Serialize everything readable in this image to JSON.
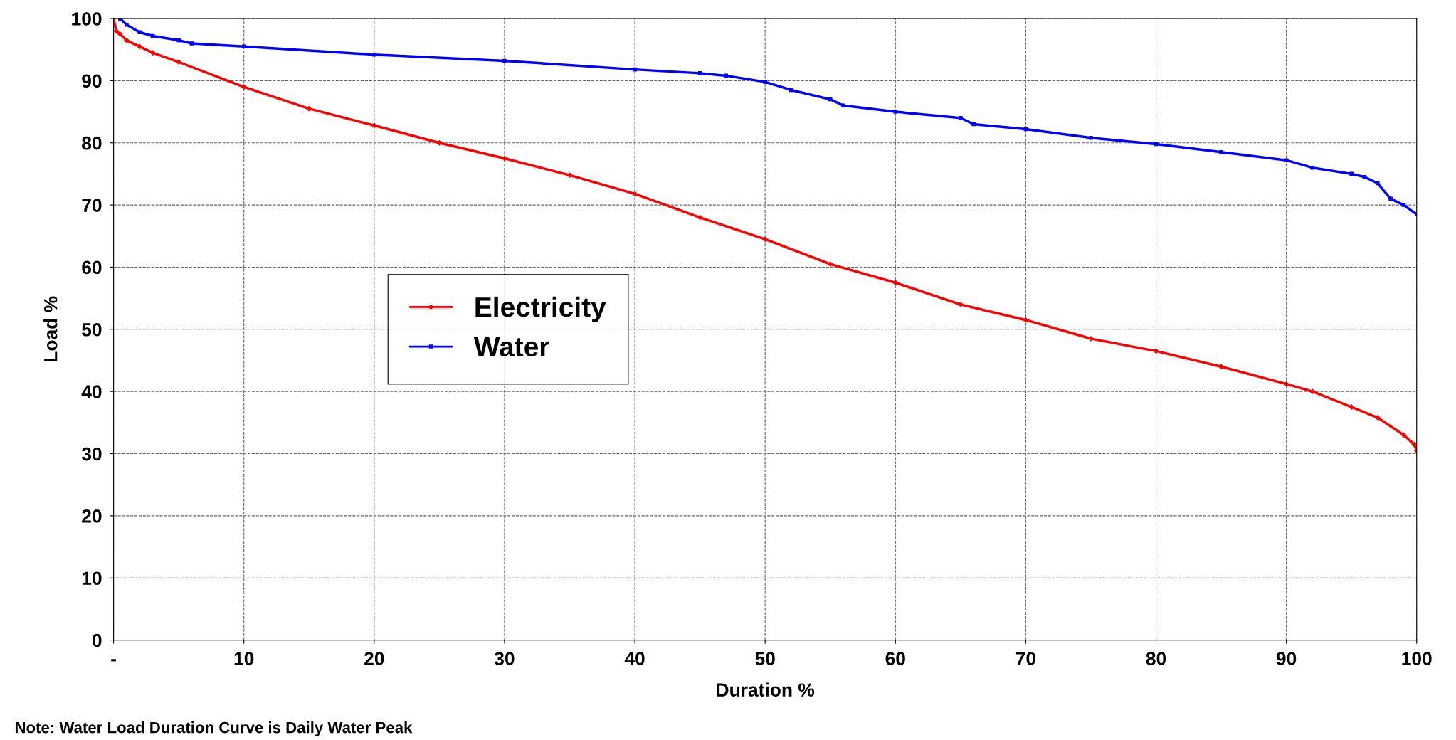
{
  "chart_data": {
    "type": "line",
    "xlabel": "Duration %",
    "ylabel": "Load %",
    "xlim": [
      0,
      100
    ],
    "xticks": [
      {
        "value": 0,
        "label": "-"
      },
      10,
      20,
      30,
      40,
      50,
      60,
      70,
      80,
      90,
      100
    ],
    "ylim": [
      0,
      100
    ],
    "yticks": [
      0,
      10,
      20,
      30,
      40,
      50,
      60,
      70,
      80,
      90,
      100
    ],
    "grid": true,
    "legend": "center left",
    "line_style": "solid",
    "annotations": [
      "Note: Water Load Duration Curve is Daily Water Peak"
    ],
    "series": [
      {
        "name": "Electricity",
        "color": "#ff0000",
        "marker": "diamond",
        "x": [
          0,
          0.2,
          0.5,
          1,
          2,
          3,
          5,
          10,
          15,
          20,
          25,
          30,
          35,
          40,
          45,
          50,
          55,
          60,
          65,
          70,
          75,
          80,
          85,
          90,
          92,
          95,
          97,
          99,
          99.8,
          100
        ],
        "values": [
          100,
          98,
          97.5,
          96.5,
          95.5,
          94.5,
          93,
          89,
          85.5,
          82.8,
          80,
          77.5,
          74.8,
          71.8,
          68,
          64.5,
          60.5,
          57.5,
          54,
          51.5,
          48.5,
          46.5,
          44,
          41.2,
          40,
          37.5,
          35.8,
          33,
          31.5,
          30.5
        ]
      },
      {
        "name": "Water",
        "color": "#0000ff",
        "marker": "square",
        "x": [
          0.5,
          1,
          2,
          3,
          5,
          6,
          10,
          20,
          30,
          40,
          45,
          47,
          50,
          52,
          55,
          56,
          60,
          65,
          66,
          70,
          75,
          80,
          85,
          90,
          92,
          95,
          96,
          97,
          98,
          99,
          100
        ],
        "values": [
          100,
          99,
          97.8,
          97.2,
          96.5,
          96,
          95.5,
          94.2,
          93.2,
          91.8,
          91.2,
          90.8,
          89.8,
          88.5,
          87,
          86,
          85,
          84,
          83,
          82.2,
          80.8,
          79.8,
          78.5,
          77.2,
          76,
          75,
          74.5,
          73.5,
          71,
          70,
          68.5
        ]
      }
    ]
  }
}
